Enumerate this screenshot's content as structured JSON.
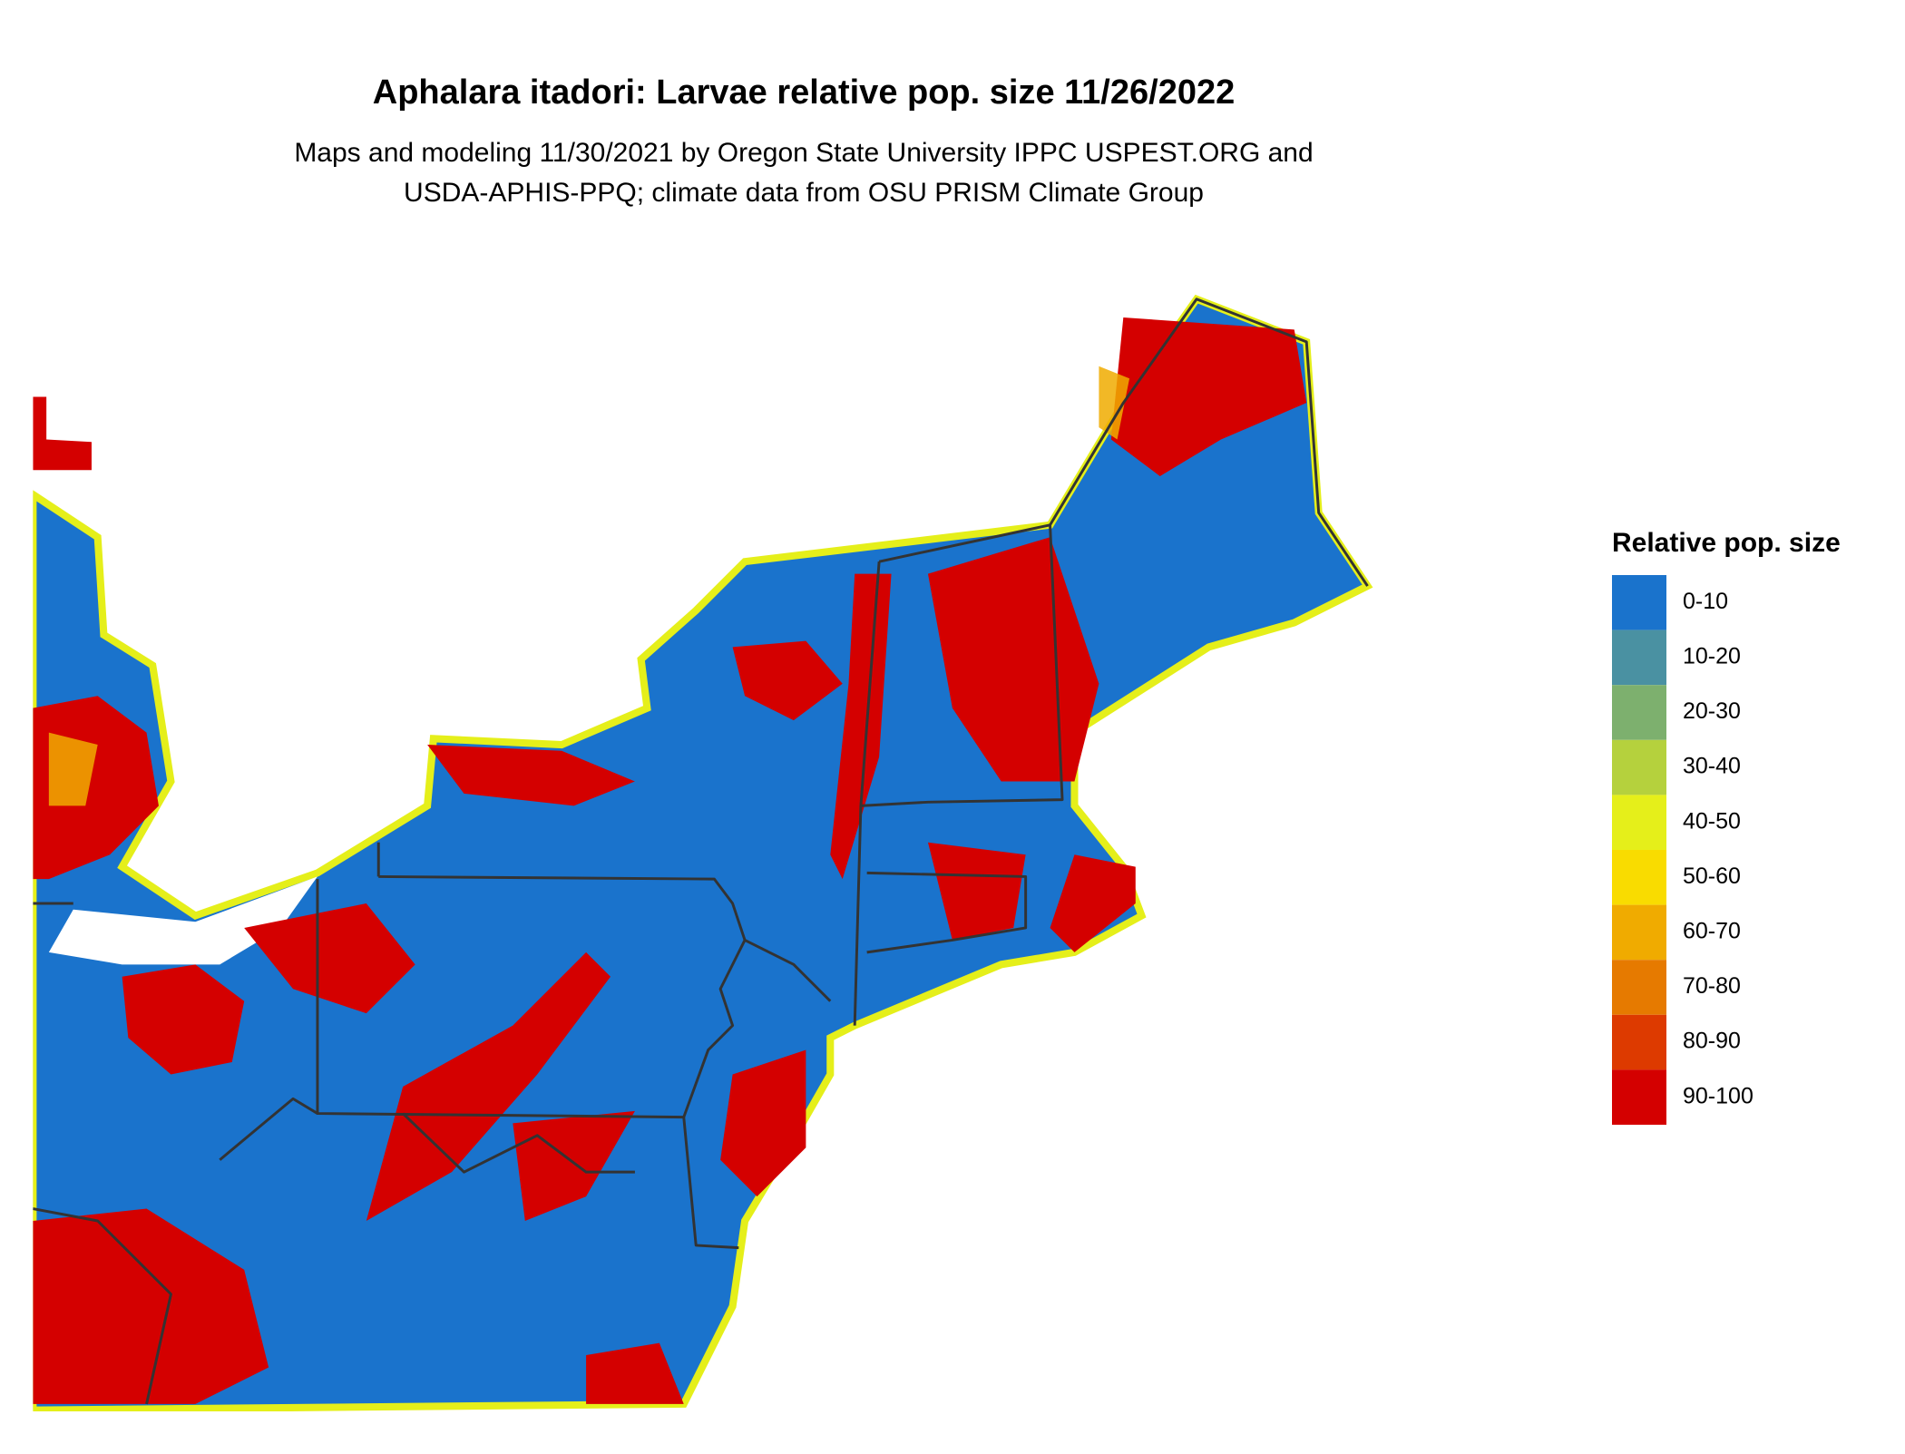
{
  "title": "Aphalara itadori: Larvae relative pop. size 11/26/2022",
  "subtitle": [
    "Maps and modeling 11/30/2021 by Oregon State University IPPC USPEST.ORG and",
    "USDA-APHIS-PPQ; climate data from OSU PRISM Climate Group"
  ],
  "legend": {
    "title": "Relative pop. size",
    "items": [
      {
        "label": "0-10",
        "color": "#1a73cc"
      },
      {
        "label": "10-20",
        "color": "#4a91a2"
      },
      {
        "label": "20-30",
        "color": "#7db06e"
      },
      {
        "label": "30-40",
        "color": "#b5d13d"
      },
      {
        "label": "40-50",
        "color": "#e5ef1a"
      },
      {
        "label": "50-60",
        "color": "#f9dc00"
      },
      {
        "label": "60-70",
        "color": "#f0ab00"
      },
      {
        "label": "70-80",
        "color": "#e67a00"
      },
      {
        "label": "80-90",
        "color": "#dd3a00"
      },
      {
        "label": "90-100",
        "color": "#d40000"
      }
    ]
  }
}
